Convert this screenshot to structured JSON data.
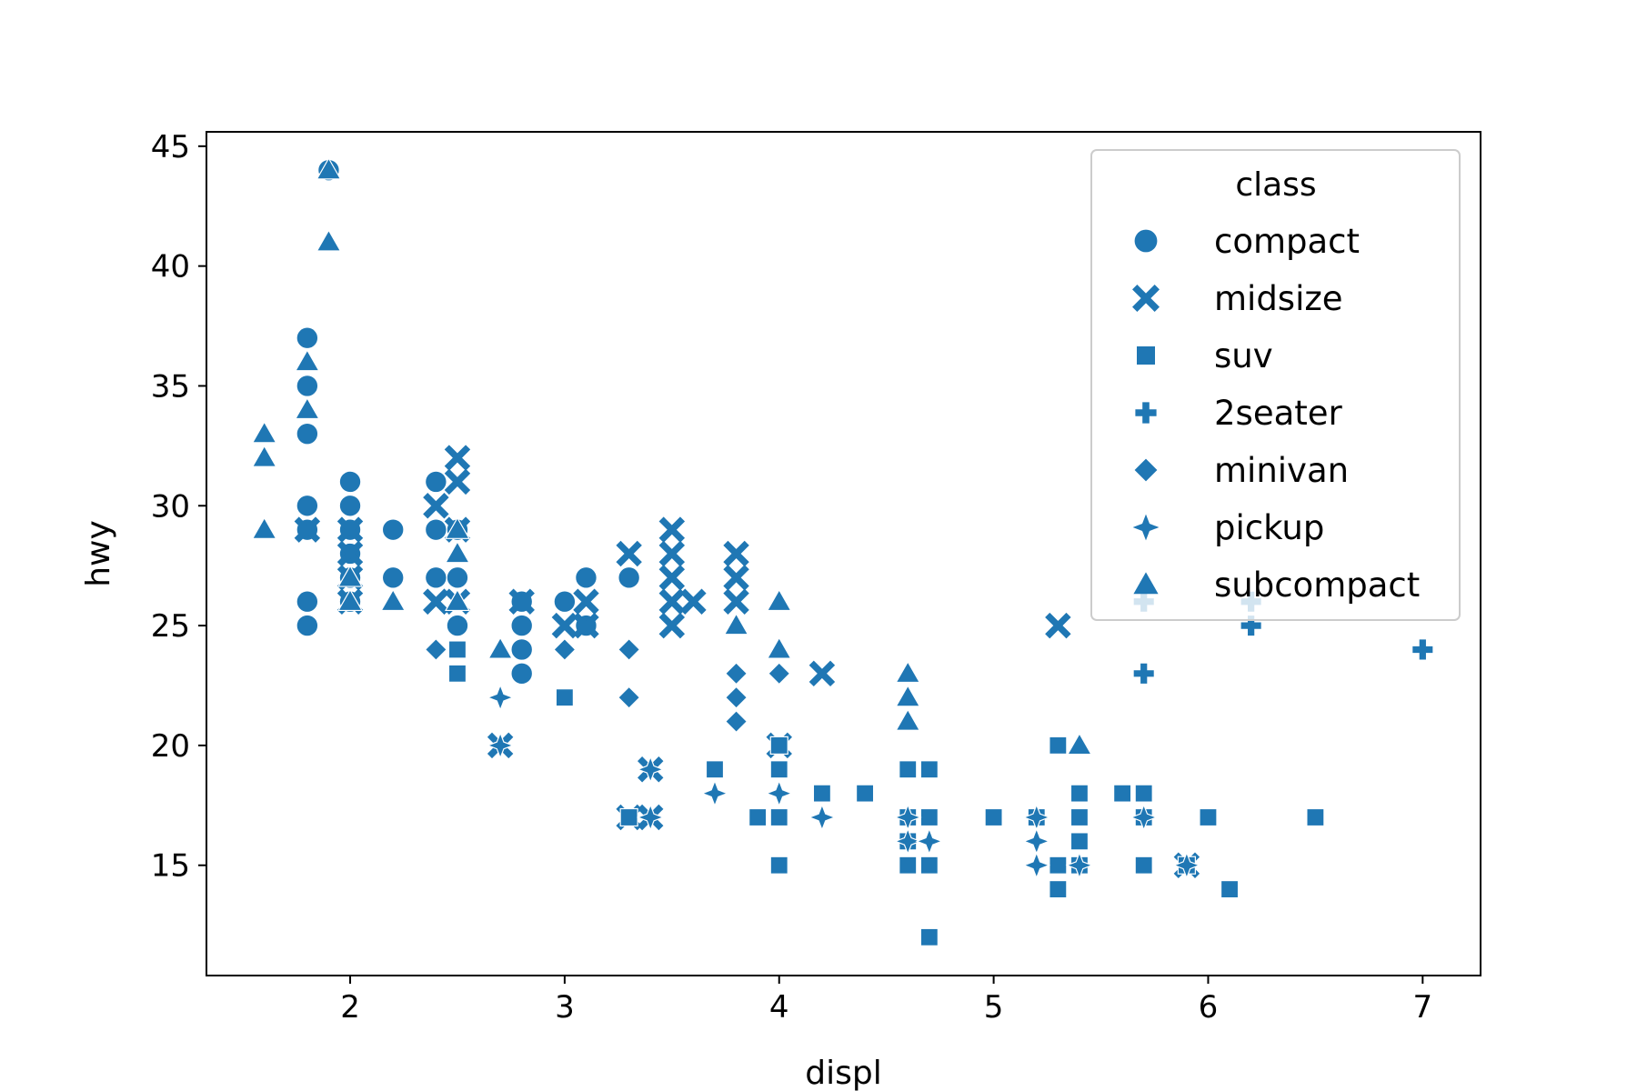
{
  "chart_data": {
    "type": "scatter",
    "title": "",
    "xlabel": "displ",
    "ylabel": "hwy",
    "xlim": [
      1.33,
      7.27
    ],
    "ylim": [
      10.4,
      45.6
    ],
    "xticks": [
      2,
      3,
      4,
      5,
      6,
      7
    ],
    "yticks": [
      15,
      20,
      25,
      30,
      35,
      40,
      45
    ],
    "grid": false,
    "color": "#1f77b4",
    "legend": {
      "title": "class",
      "location": "top-right"
    },
    "series": [
      {
        "name": "compact",
        "marker": "circle",
        "points": [
          [
            1.8,
            29
          ],
          [
            1.8,
            29
          ],
          [
            2.0,
            31
          ],
          [
            2.0,
            30
          ],
          [
            2.8,
            26
          ],
          [
            2.8,
            26
          ],
          [
            3.1,
            27
          ],
          [
            1.8,
            26
          ],
          [
            1.8,
            25
          ],
          [
            2.0,
            28
          ],
          [
            2.0,
            27
          ],
          [
            2.8,
            25
          ],
          [
            2.8,
            25
          ],
          [
            3.1,
            25
          ],
          [
            2.2,
            27
          ],
          [
            2.2,
            29
          ],
          [
            2.4,
            31
          ],
          [
            2.4,
            31
          ],
          [
            3.0,
            26
          ],
          [
            3.0,
            26
          ],
          [
            3.3,
            27
          ],
          [
            1.8,
            35
          ],
          [
            1.8,
            37
          ],
          [
            1.8,
            35
          ],
          [
            1.9,
            44
          ],
          [
            2.0,
            29
          ],
          [
            2.0,
            26
          ],
          [
            2.0,
            29
          ],
          [
            2.0,
            29
          ],
          [
            2.5,
            29
          ],
          [
            2.5,
            27
          ],
          [
            2.4,
            27
          ],
          [
            2.4,
            29
          ],
          [
            2.5,
            25
          ],
          [
            2.8,
            24
          ],
          [
            2.8,
            23
          ],
          [
            1.8,
            30
          ],
          [
            1.8,
            33
          ]
        ]
      },
      {
        "name": "midsize",
        "marker": "x",
        "points": [
          [
            2.4,
            30
          ],
          [
            2.4,
            26
          ],
          [
            2.4,
            26
          ],
          [
            2.5,
            32
          ],
          [
            2.5,
            31
          ],
          [
            3.0,
            25
          ],
          [
            3.1,
            26
          ],
          [
            3.1,
            25
          ],
          [
            3.3,
            28
          ],
          [
            3.5,
            29
          ],
          [
            3.5,
            28
          ],
          [
            3.5,
            27
          ],
          [
            3.5,
            26
          ],
          [
            3.5,
            25
          ],
          [
            3.6,
            26
          ],
          [
            3.8,
            28
          ],
          [
            3.8,
            27
          ],
          [
            3.8,
            26
          ],
          [
            4.2,
            23
          ],
          [
            5.3,
            25
          ],
          [
            2.0,
            29
          ],
          [
            2.0,
            28
          ],
          [
            2.0,
            27
          ],
          [
            2.5,
            29
          ],
          [
            2.5,
            26
          ],
          [
            2.8,
            26
          ],
          [
            3.3,
            17
          ],
          [
            3.4,
            19
          ],
          [
            3.4,
            17
          ],
          [
            4.0,
            20
          ],
          [
            1.8,
            29
          ],
          [
            2.0,
            26
          ],
          [
            2.7,
            20
          ],
          [
            5.9,
            15
          ]
        ]
      },
      {
        "name": "suv",
        "marker": "square",
        "points": [
          [
            5.3,
            20
          ],
          [
            5.3,
            15
          ],
          [
            5.3,
            20
          ],
          [
            5.7,
            17
          ],
          [
            6.0,
            17
          ],
          [
            5.7,
            15
          ],
          [
            6.5,
            17
          ],
          [
            3.7,
            19
          ],
          [
            3.9,
            17
          ],
          [
            4.7,
            19
          ],
          [
            4.7,
            17
          ],
          [
            4.7,
            12
          ],
          [
            5.2,
            17
          ],
          [
            5.7,
            18
          ],
          [
            5.9,
            15
          ],
          [
            4.0,
            20
          ],
          [
            4.0,
            19
          ],
          [
            4.0,
            17
          ],
          [
            4.0,
            15
          ],
          [
            4.6,
            17
          ],
          [
            5.0,
            17
          ],
          [
            4.2,
            18
          ],
          [
            4.4,
            18
          ],
          [
            4.6,
            19
          ],
          [
            5.4,
            17
          ],
          [
            5.4,
            18
          ],
          [
            5.4,
            16
          ],
          [
            3.0,
            22
          ],
          [
            3.3,
            17
          ],
          [
            4.7,
            15
          ],
          [
            5.3,
            14
          ],
          [
            5.4,
            15
          ],
          [
            4.6,
            15
          ],
          [
            5.6,
            18
          ],
          [
            6.1,
            14
          ],
          [
            2.5,
            24
          ],
          [
            2.5,
            23
          ],
          [
            4.6,
            16
          ],
          [
            5.7,
            18
          ]
        ]
      },
      {
        "name": "2seater",
        "marker": "plus",
        "points": [
          [
            5.7,
            26
          ],
          [
            5.7,
            23
          ],
          [
            6.2,
            26
          ],
          [
            6.2,
            25
          ],
          [
            7.0,
            24
          ]
        ]
      },
      {
        "name": "minivan",
        "marker": "diamond",
        "points": [
          [
            2.4,
            24
          ],
          [
            3.0,
            24
          ],
          [
            3.3,
            22
          ],
          [
            3.3,
            24
          ],
          [
            3.8,
            23
          ],
          [
            3.8,
            22
          ],
          [
            3.8,
            21
          ],
          [
            4.0,
            23
          ]
        ]
      },
      {
        "name": "pickup",
        "marker": "star",
        "points": [
          [
            2.7,
            22
          ],
          [
            2.7,
            20
          ],
          [
            3.4,
            19
          ],
          [
            3.4,
            17
          ],
          [
            3.7,
            18
          ],
          [
            4.0,
            18
          ],
          [
            4.2,
            17
          ],
          [
            4.6,
            17
          ],
          [
            4.6,
            16
          ],
          [
            4.7,
            16
          ],
          [
            5.2,
            17
          ],
          [
            5.2,
            16
          ],
          [
            5.2,
            15
          ],
          [
            5.4,
            15
          ],
          [
            5.7,
            17
          ],
          [
            5.9,
            15
          ]
        ]
      },
      {
        "name": "subcompact",
        "marker": "triangle",
        "points": [
          [
            1.6,
            33
          ],
          [
            1.6,
            32
          ],
          [
            1.6,
            29
          ],
          [
            1.8,
            36
          ],
          [
            1.8,
            34
          ],
          [
            1.9,
            44
          ],
          [
            1.9,
            41
          ],
          [
            2.0,
            27
          ],
          [
            2.0,
            26
          ],
          [
            2.2,
            26
          ],
          [
            2.5,
            28
          ],
          [
            2.5,
            26
          ],
          [
            2.5,
            29
          ],
          [
            2.7,
            24
          ],
          [
            3.8,
            25
          ],
          [
            4.0,
            26
          ],
          [
            4.0,
            24
          ],
          [
            4.6,
            23
          ],
          [
            4.6,
            22
          ],
          [
            4.6,
            21
          ],
          [
            5.4,
            20
          ]
        ]
      }
    ]
  }
}
